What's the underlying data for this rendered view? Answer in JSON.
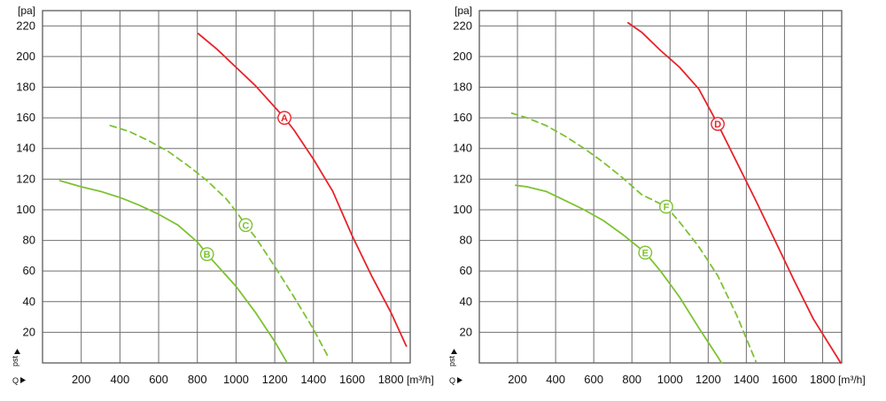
{
  "colors": {
    "red": "#e8232a",
    "green": "#7dc232",
    "grid": "#6f6f6f",
    "text": "#111111"
  },
  "chart_data": [
    {
      "type": "line",
      "title": "",
      "xlabel": "[m³/h]",
      "ylabel": "[pa]",
      "x_axis_symbol": "Q",
      "y_axis_symbol": "pst",
      "xlim": [
        0,
        1900
      ],
      "ylim": [
        0,
        230
      ],
      "grid": true,
      "x_ticks": [
        "200",
        "400",
        "600",
        "800",
        "1000",
        "1200",
        "1400",
        "1600",
        "1800"
      ],
      "y_ticks": [
        "20",
        "40",
        "60",
        "80",
        "100",
        "120",
        "140",
        "160",
        "180",
        "200",
        "220"
      ],
      "series": [
        {
          "name": "A",
          "color": "#e8232a",
          "style": "solid",
          "label_at": [
            1250,
            160
          ],
          "x": [
            805,
            900,
            1000,
            1100,
            1200,
            1250,
            1300,
            1400,
            1500,
            1600,
            1700,
            1800,
            1880
          ],
          "y": [
            215,
            205,
            193,
            181,
            167,
            160,
            152,
            133,
            112,
            83,
            57,
            33,
            11
          ]
        },
        {
          "name": "B",
          "color": "#7dc232",
          "style": "solid",
          "label_at": [
            850,
            71
          ],
          "x": [
            90,
            200,
            300,
            400,
            500,
            600,
            700,
            800,
            850,
            900,
            1000,
            1100,
            1200,
            1260
          ],
          "y": [
            119,
            115,
            112,
            108,
            103,
            97,
            90,
            79,
            71,
            64,
            50,
            33,
            14,
            1
          ]
        },
        {
          "name": "C",
          "color": "#7dc232",
          "style": "dashed",
          "label_at": [
            1050,
            90
          ],
          "x": [
            350,
            450,
            550,
            650,
            750,
            850,
            950,
            1000,
            1050,
            1100,
            1200,
            1300,
            1400,
            1480
          ],
          "y": [
            155,
            151,
            145,
            138,
            129,
            119,
            107,
            99,
            90,
            82,
            63,
            43,
            22,
            3
          ]
        }
      ]
    },
    {
      "type": "line",
      "title": "",
      "xlabel": "[m³/h]",
      "ylabel": "[pa]",
      "x_axis_symbol": "Q",
      "y_axis_symbol": "pst",
      "xlim": [
        0,
        1900
      ],
      "ylim": [
        0,
        230
      ],
      "grid": true,
      "x_ticks": [
        "200",
        "400",
        "600",
        "800",
        "1000",
        "1200",
        "1400",
        "1600",
        "1800"
      ],
      "y_ticks": [
        "20",
        "40",
        "60",
        "80",
        "100",
        "120",
        "140",
        "160",
        "180",
        "200",
        "220"
      ],
      "series": [
        {
          "name": "D",
          "color": "#e8232a",
          "style": "solid",
          "label_at": [
            1250,
            156
          ],
          "x": [
            780,
            850,
            950,
            1050,
            1150,
            1250,
            1350,
            1450,
            1550,
            1650,
            1750,
            1850,
            1895
          ],
          "y": [
            222,
            216,
            204,
            193,
            179,
            156,
            131,
            106,
            80,
            54,
            29,
            9,
            0
          ]
        },
        {
          "name": "E",
          "color": "#7dc232",
          "style": "solid",
          "label_at": [
            870,
            72
          ],
          "x": [
            190,
            250,
            350,
            450,
            550,
            650,
            750,
            870,
            950,
            1050,
            1150,
            1250,
            1270
          ],
          "y": [
            116,
            115,
            112,
            106,
            100,
            93,
            84,
            72,
            60,
            43,
            23,
            4,
            0
          ]
        },
        {
          "name": "F",
          "color": "#7dc232",
          "style": "dashed",
          "label_at": [
            980,
            102
          ],
          "x": [
            170,
            250,
            350,
            450,
            550,
            650,
            750,
            850,
            980,
            1050,
            1150,
            1250,
            1350,
            1450
          ],
          "y": [
            163,
            160,
            155,
            148,
            140,
            131,
            121,
            110,
            102,
            92,
            76,
            57,
            31,
            1
          ]
        }
      ]
    }
  ]
}
